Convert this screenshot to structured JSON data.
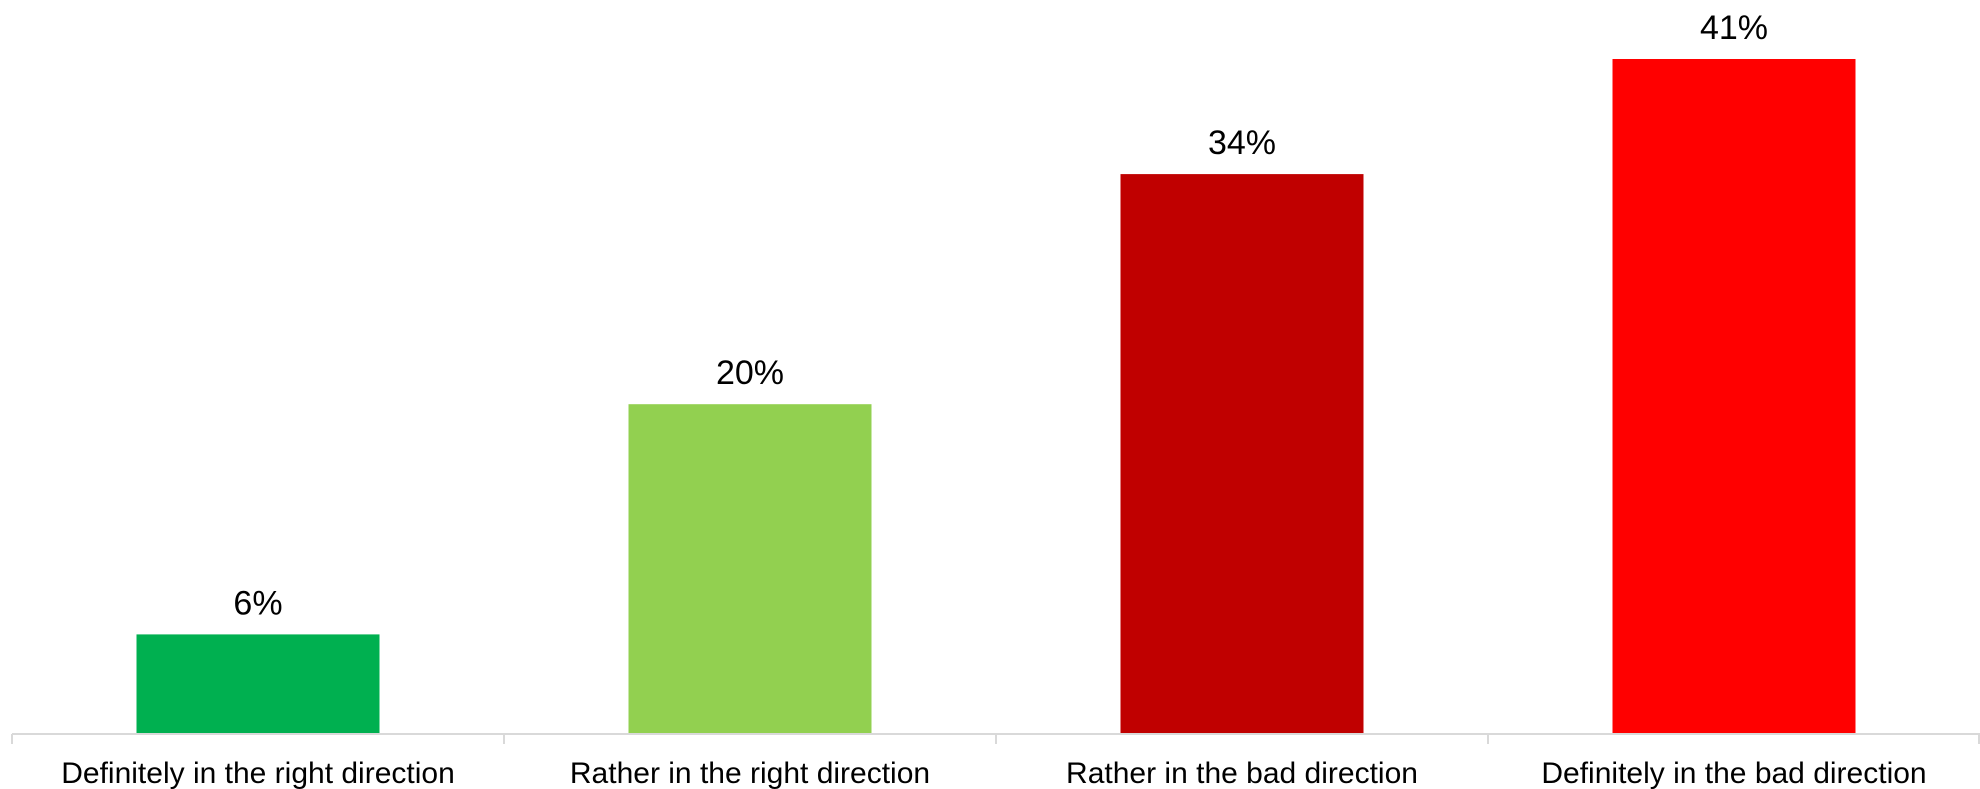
{
  "chart_data": {
    "type": "bar",
    "categories": [
      "Definitely in the right direction",
      "Rather in the right direction",
      "Rather in the bad direction",
      "Definitely in the bad direction"
    ],
    "values": [
      6,
      20,
      34,
      41
    ],
    "data_labels": [
      "6%",
      "20%",
      "34%",
      "41%"
    ],
    "colors": [
      "#00b050",
      "#92d050",
      "#c00000",
      "#ff0000"
    ],
    "unit": "%",
    "title": "",
    "xlabel": "",
    "ylabel": "",
    "ylim": [
      0,
      41
    ],
    "grid": false,
    "legend": "none"
  }
}
